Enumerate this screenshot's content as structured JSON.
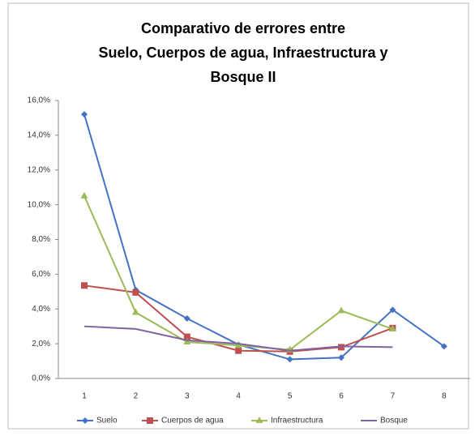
{
  "chart_data": {
    "type": "line",
    "title": [
      "Comparativo de errores entre",
      "Suelo, Cuerpos de agua, Infraestructura y",
      "Bosque II"
    ],
    "categories": [
      "1",
      "2",
      "3",
      "4",
      "5",
      "6",
      "7",
      "8"
    ],
    "series": [
      {
        "name": "Suelo",
        "color": "#4472c4",
        "marker": "diamond",
        "values": [
          15.2,
          5.1,
          3.45,
          1.95,
          1.1,
          1.2,
          3.95,
          1.85
        ]
      },
      {
        "name": "Cuerpos de agua",
        "color": "#c0504d",
        "marker": "square",
        "values": [
          5.35,
          4.95,
          2.4,
          1.6,
          1.55,
          1.8,
          2.9,
          null
        ]
      },
      {
        "name": "Infraestructura",
        "color": "#9bbb59",
        "marker": "triangle",
        "values": [
          10.5,
          3.8,
          2.1,
          1.9,
          1.65,
          3.9,
          2.85,
          null
        ]
      },
      {
        "name": "Bosque",
        "color": "#8064a2",
        "marker": "none",
        "values": [
          3.0,
          2.85,
          2.2,
          2.0,
          1.6,
          1.85,
          1.8,
          null
        ]
      }
    ],
    "ylim": [
      0,
      16
    ],
    "yticks": [
      {
        "value": 0,
        "label": "0,0%"
      },
      {
        "value": 2,
        "label": "2,0%"
      },
      {
        "value": 4,
        "label": "4,0%"
      },
      {
        "value": 6,
        "label": "6,0%"
      },
      {
        "value": 8,
        "label": "8,0%"
      },
      {
        "value": 10,
        "label": "10,0%"
      },
      {
        "value": 12,
        "label": "12,0%"
      },
      {
        "value": 14,
        "label": "14,0%"
      },
      {
        "value": 16,
        "label": "16,0%"
      }
    ],
    "grid": false,
    "legend": "bottom"
  }
}
